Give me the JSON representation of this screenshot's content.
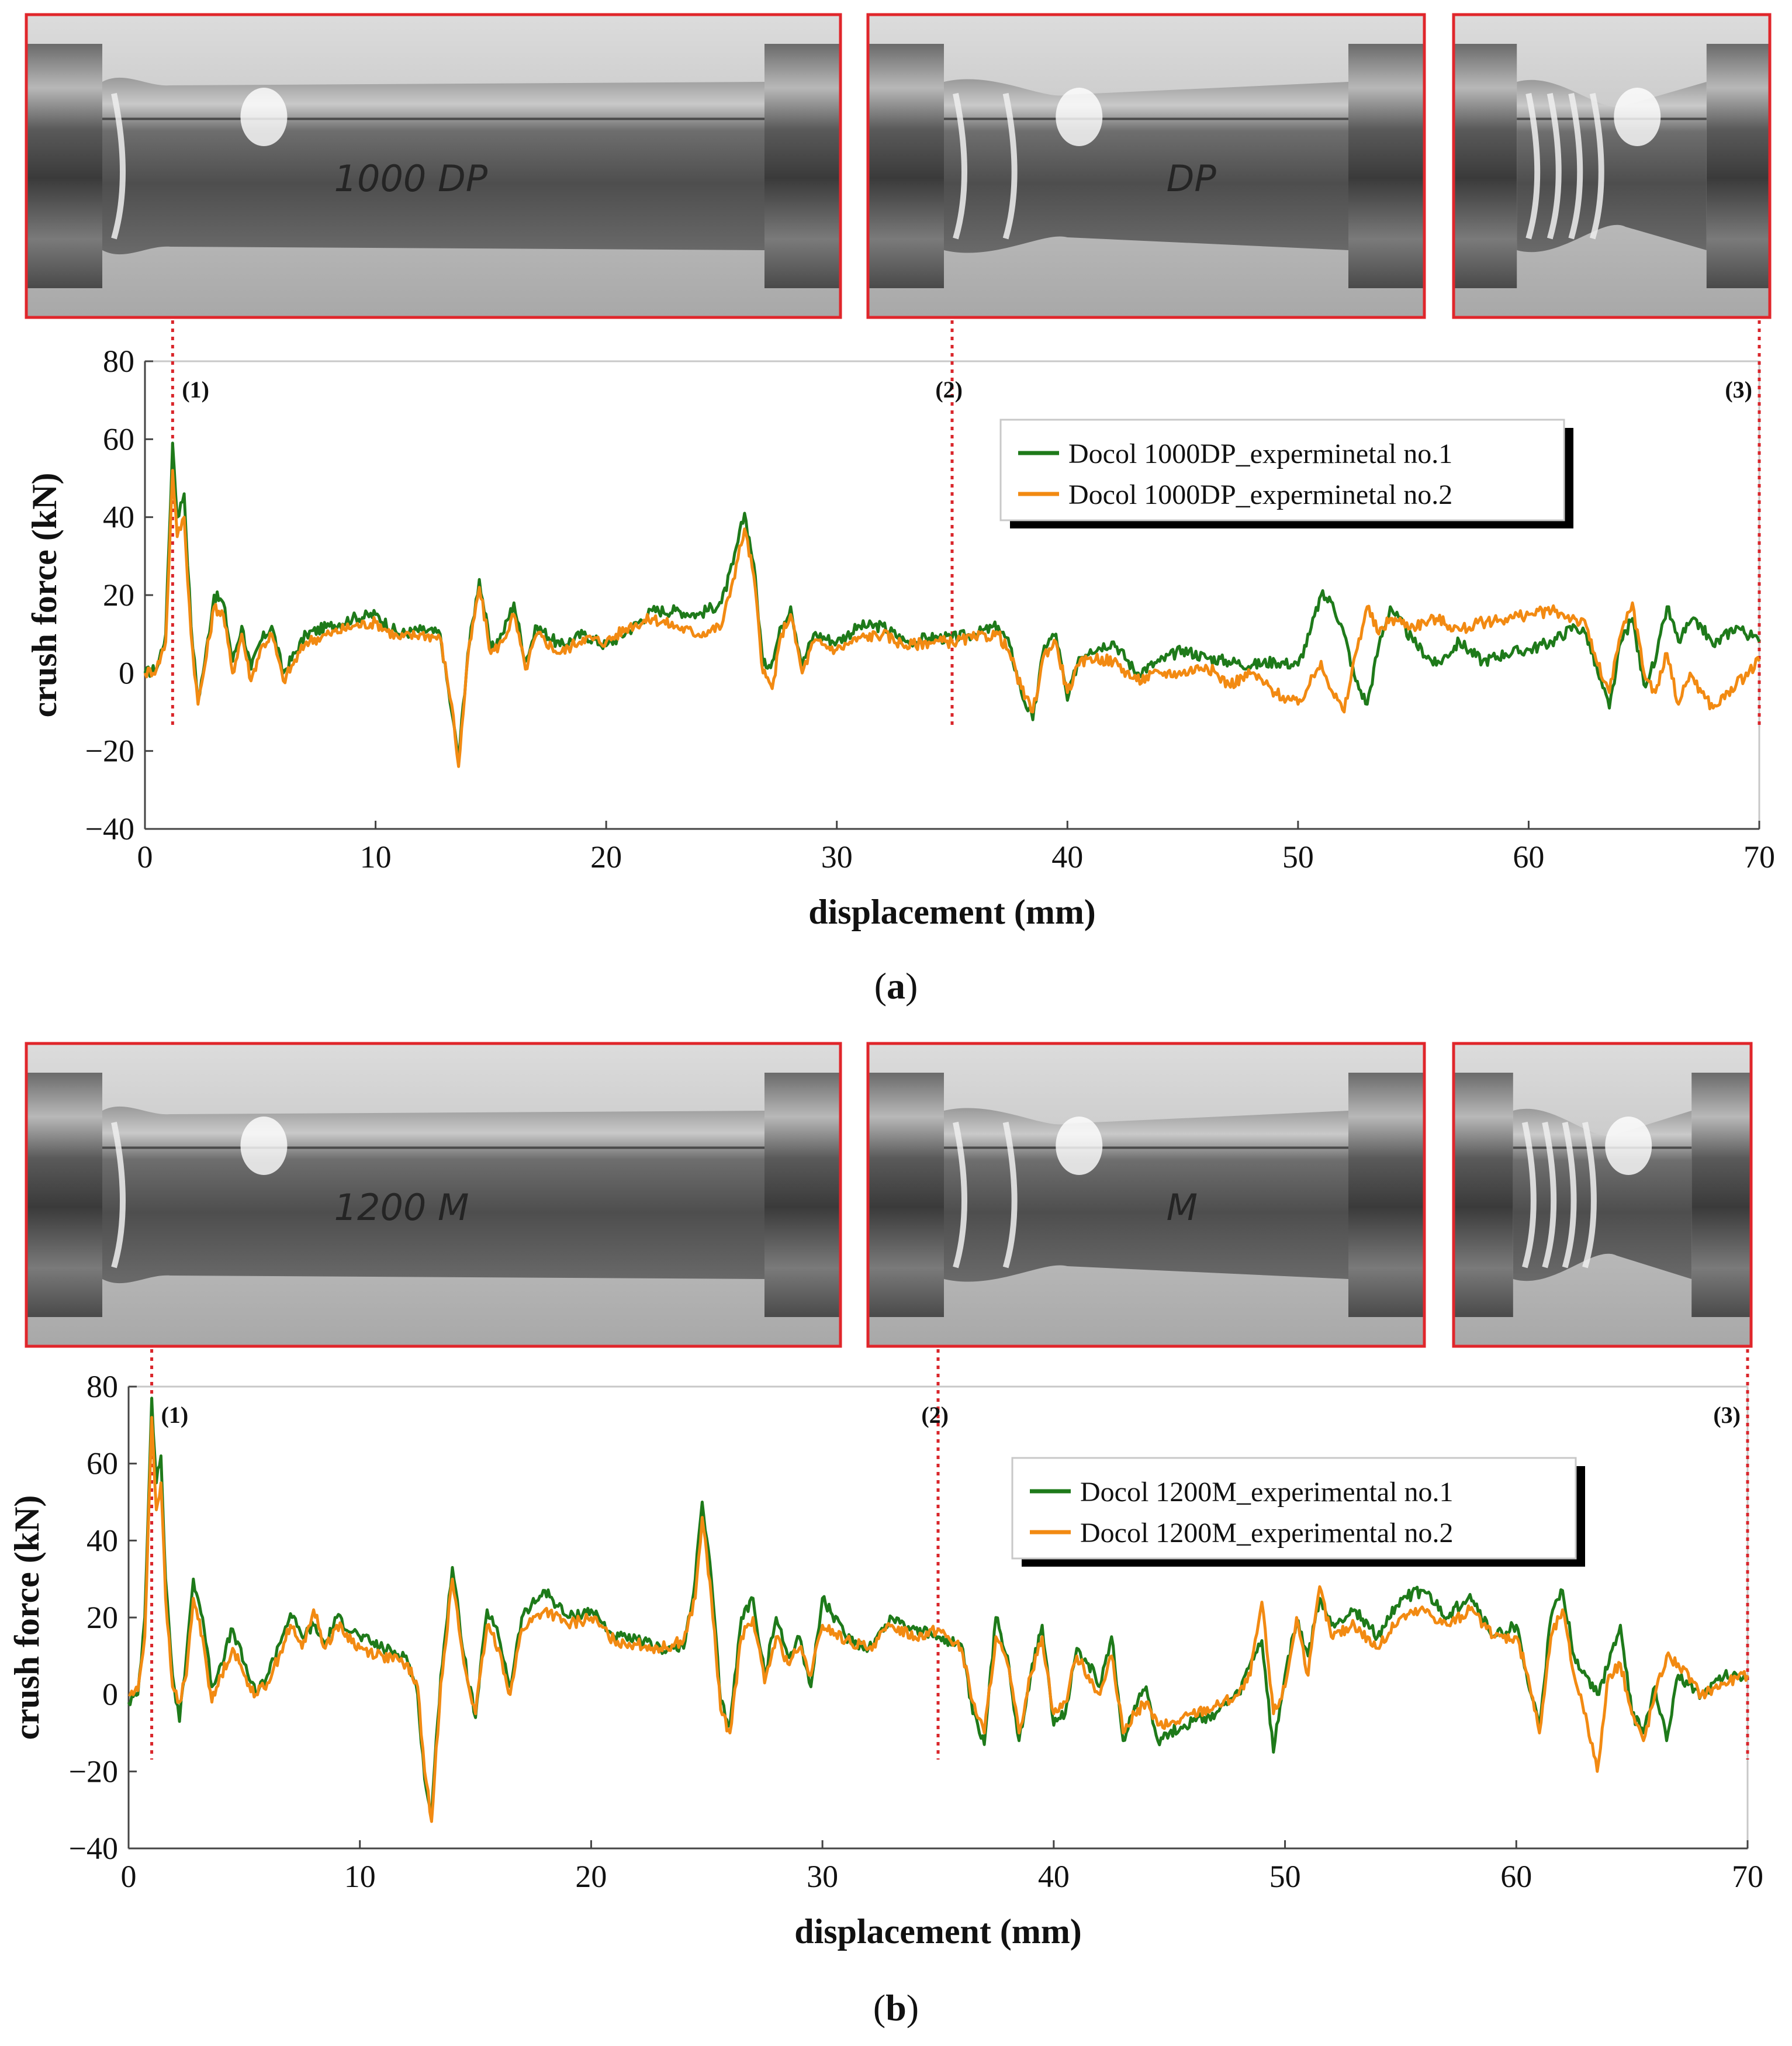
{
  "panels": [
    {
      "id": "a",
      "caption": "a",
      "photos": [
        {
          "stage": "(1)",
          "label": "1000 DP",
          "buckle": 0.15
        },
        {
          "stage": "(2)",
          "label": "DP",
          "buckle": 0.55
        },
        {
          "stage": "(3)",
          "label": "",
          "buckle": 1.0
        }
      ],
      "markers": [
        "(1)",
        "(2)",
        "(3)"
      ],
      "marker_x": [
        1.2,
        35,
        70
      ],
      "legend": [
        "Docol 1000DP_experminetal no.1",
        "Docol 1000DP_experminetal no.2"
      ],
      "colors": {
        "series1": "#1e7a1a",
        "series2": "#f28a12"
      }
    },
    {
      "id": "b",
      "caption": "b",
      "photos": [
        {
          "stage": "(1)",
          "label": "1200 M",
          "buckle": 0.15
        },
        {
          "stage": "(2)",
          "label": "M",
          "buckle": 0.55
        },
        {
          "stage": "(3)",
          "label": "",
          "buckle": 1.0
        }
      ],
      "markers": [
        "(1)",
        "(2)",
        "(3)"
      ],
      "marker_x": [
        1.0,
        35,
        70
      ],
      "legend": [
        "Docol 1200M_experimental no.1",
        "Docol 1200M_experimental no.2"
      ],
      "colors": {
        "series1": "#1e7a1a",
        "series2": "#f28a12"
      }
    }
  ],
  "chart_data": [
    {
      "type": "line",
      "title": "",
      "xlabel": "displacement (mm)",
      "ylabel": "crush force (kN)",
      "xlim": [
        0,
        70
      ],
      "ylim": [
        -40,
        80
      ],
      "xticks": [
        0,
        10,
        20,
        30,
        40,
        50,
        60,
        70
      ],
      "yticks": [
        -40,
        -20,
        0,
        20,
        40,
        60,
        80
      ],
      "grid": false,
      "legend_position": "top-right",
      "series": [
        {
          "name": "Docol 1000DP_experminetal no.1",
          "color": "#1e7a1a",
          "x": [
            0,
            0.5,
            0.9,
            1.2,
            1.4,
            1.7,
            2.0,
            2.3,
            2.6,
            3.0,
            3.4,
            3.8,
            4.2,
            4.6,
            5.0,
            5.5,
            6.0,
            7.0,
            8.0,
            9.0,
            10.0,
            11.0,
            12.0,
            12.8,
            13.3,
            13.6,
            14.0,
            14.5,
            15.0,
            15.5,
            16.0,
            16.5,
            17.0,
            18.0,
            19.0,
            20.0,
            21.0,
            22.0,
            23.0,
            24.0,
            25.0,
            25.5,
            26.0,
            26.4,
            26.8,
            27.2,
            27.6,
            28.0,
            28.5,
            29.0,
            30.0,
            31.0,
            32.0,
            33.0,
            34.0,
            35.0,
            36.0,
            37.0,
            37.5,
            38.0,
            38.5,
            39.0,
            39.5,
            40.0,
            40.5,
            41.0,
            42.0,
            43.0,
            44.0,
            45.0,
            46.0,
            47.0,
            48.0,
            49.0,
            50.0,
            50.5,
            51.0,
            51.5,
            52.0,
            52.5,
            53.0,
            53.5,
            54.0,
            55.0,
            56.0,
            57.0,
            58.0,
            59.0,
            60.0,
            61.0,
            62.0,
            62.5,
            63.0,
            63.5,
            64.0,
            64.5,
            65.0,
            65.5,
            66.0,
            66.5,
            67.0,
            67.5,
            68.0,
            69.0,
            70.0
          ],
          "values": [
            0,
            1,
            10,
            59,
            40,
            46,
            12,
            -7,
            3,
            20,
            18,
            3,
            12,
            1,
            8,
            12,
            0,
            10,
            12,
            14,
            15,
            10,
            11,
            10,
            -10,
            -22,
            5,
            24,
            6,
            10,
            18,
            3,
            12,
            7,
            10,
            7,
            11,
            16,
            16,
            15,
            18,
            28,
            41,
            28,
            2,
            3,
            12,
            17,
            2,
            10,
            8,
            12,
            12,
            8,
            9,
            9,
            10,
            12,
            7,
            -5,
            -12,
            7,
            10,
            -7,
            4,
            6,
            8,
            0,
            3,
            6,
            4,
            3,
            2,
            3,
            2,
            10,
            20,
            18,
            10,
            -2,
            -8,
            7,
            17,
            8,
            2,
            8,
            3,
            5,
            6,
            8,
            12,
            10,
            0,
            -9,
            8,
            14,
            -3,
            3,
            17,
            8,
            13,
            12,
            7,
            12,
            8
          ]
        },
        {
          "name": "Docol 1000DP_experminetal no.2",
          "color": "#f28a12",
          "x": [
            0,
            0.5,
            0.9,
            1.2,
            1.4,
            1.7,
            2.0,
            2.3,
            2.6,
            3.0,
            3.4,
            3.8,
            4.2,
            4.6,
            5.0,
            5.5,
            6.0,
            7.0,
            8.0,
            9.0,
            10.0,
            11.0,
            12.0,
            12.8,
            13.3,
            13.6,
            14.0,
            14.5,
            15.0,
            15.5,
            16.0,
            16.5,
            17.0,
            18.0,
            19.0,
            20.0,
            21.0,
            22.0,
            23.0,
            24.0,
            25.0,
            25.5,
            26.0,
            26.4,
            26.8,
            27.2,
            27.6,
            28.0,
            28.5,
            29.0,
            30.0,
            31.0,
            32.0,
            33.0,
            34.0,
            35.0,
            36.0,
            37.0,
            37.5,
            38.0,
            38.5,
            39.0,
            39.5,
            40.0,
            40.5,
            41.0,
            42.0,
            43.0,
            44.0,
            45.0,
            46.0,
            47.0,
            48.0,
            49.0,
            50.0,
            50.5,
            51.0,
            51.5,
            52.0,
            52.5,
            53.0,
            53.5,
            54.0,
            55.0,
            56.0,
            57.0,
            58.0,
            59.0,
            60.0,
            61.0,
            62.0,
            62.5,
            63.0,
            63.5,
            64.0,
            64.5,
            65.0,
            65.5,
            66.0,
            66.5,
            67.0,
            67.5,
            68.0,
            69.0,
            70.0
          ],
          "values": [
            0,
            1,
            8,
            52,
            35,
            40,
            10,
            -8,
            2,
            17,
            15,
            0,
            10,
            -2,
            6,
            10,
            -2,
            8,
            10,
            12,
            13,
            9,
            10,
            9,
            -8,
            -24,
            4,
            22,
            5,
            8,
            15,
            1,
            10,
            5,
            9,
            8,
            12,
            14,
            12,
            10,
            12,
            24,
            37,
            25,
            0,
            -4,
            10,
            15,
            0,
            8,
            6,
            9,
            10,
            7,
            8,
            8,
            9,
            10,
            5,
            -4,
            -10,
            5,
            8,
            -5,
            2,
            4,
            3,
            -2,
            0,
            0,
            2,
            -3,
            0,
            -5,
            -8,
            -3,
            3,
            -5,
            -10,
            5,
            17,
            10,
            14,
            12,
            14,
            11,
            13,
            14,
            15,
            16,
            14,
            12,
            2,
            -5,
            10,
            18,
            0,
            -5,
            5,
            -8,
            0,
            -5,
            -9,
            -3,
            3
          ]
        }
      ]
    },
    {
      "type": "line",
      "title": "",
      "xlabel": "displacement (mm)",
      "ylabel": "crush force (kN)",
      "xlim": [
        0,
        70
      ],
      "ylim": [
        -40,
        80
      ],
      "xticks": [
        0,
        10,
        20,
        30,
        40,
        50,
        60,
        70
      ],
      "yticks": [
        -40,
        -20,
        0,
        20,
        40,
        60,
        80
      ],
      "grid": false,
      "legend_position": "top-right",
      "series": [
        {
          "name": "Docol 1200M_experimental no.1",
          "color": "#1e7a1a",
          "x": [
            0,
            0.4,
            0.7,
            1.0,
            1.2,
            1.4,
            1.6,
            1.9,
            2.2,
            2.5,
            2.8,
            3.2,
            3.6,
            4.0,
            4.5,
            5.0,
            5.5,
            6.0,
            6.5,
            7.0,
            7.5,
            8.0,
            8.5,
            9.0,
            10.0,
            11.0,
            12.0,
            12.5,
            12.8,
            13.1,
            13.5,
            14.0,
            14.5,
            15.0,
            15.5,
            16.0,
            16.5,
            17.0,
            18.0,
            19.0,
            20.0,
            21.0,
            22.0,
            23.0,
            24.0,
            24.5,
            24.8,
            25.2,
            25.6,
            26.0,
            26.5,
            27.0,
            27.5,
            28.0,
            28.5,
            29.0,
            29.5,
            30.0,
            31.0,
            32.0,
            33.0,
            34.0,
            35.0,
            36.0,
            36.5,
            37.0,
            37.5,
            38.0,
            38.5,
            39.0,
            39.5,
            40.0,
            40.5,
            41.0,
            41.5,
            42.0,
            42.5,
            43.0,
            43.5,
            44.0,
            44.5,
            45.0,
            46.0,
            47.0,
            48.0,
            48.5,
            49.0,
            49.5,
            50.0,
            50.5,
            51.0,
            51.5,
            52.0,
            53.0,
            54.0,
            55.0,
            56.0,
            57.0,
            58.0,
            59.0,
            60.0,
            60.5,
            61.0,
            61.5,
            62.0,
            62.5,
            63.0,
            63.5,
            64.0,
            64.5,
            65.0,
            65.5,
            66.0,
            66.5,
            67.0,
            68.0,
            69.0,
            70.0
          ],
          "values": [
            -2,
            0,
            20,
            77,
            55,
            62,
            30,
            5,
            -7,
            10,
            30,
            20,
            2,
            8,
            17,
            8,
            0,
            5,
            13,
            21,
            15,
            18,
            13,
            20,
            15,
            12,
            10,
            0,
            -22,
            -31,
            5,
            33,
            10,
            -6,
            22,
            15,
            2,
            20,
            27,
            20,
            22,
            15,
            14,
            12,
            12,
            30,
            50,
            30,
            -2,
            -8,
            20,
            25,
            5,
            20,
            10,
            15,
            2,
            25,
            15,
            12,
            20,
            17,
            15,
            13,
            -5,
            -13,
            20,
            10,
            -12,
            5,
            18,
            -8,
            -5,
            12,
            8,
            2,
            15,
            -12,
            -3,
            2,
            -12,
            -10,
            -7,
            -5,
            0,
            8,
            14,
            -15,
            5,
            19,
            10,
            25,
            18,
            22,
            15,
            25,
            27,
            20,
            26,
            15,
            18,
            3,
            -8,
            20,
            27,
            10,
            5,
            0,
            8,
            18,
            -5,
            -10,
            2,
            -12,
            5,
            0,
            5,
            5
          ]
        },
        {
          "name": "Docol 1200M_experimental no.2",
          "color": "#f28a12",
          "x": [
            0,
            0.4,
            0.7,
            1.0,
            1.2,
            1.4,
            1.6,
            1.9,
            2.2,
            2.5,
            2.8,
            3.2,
            3.6,
            4.0,
            4.5,
            5.0,
            5.5,
            6.0,
            6.5,
            7.0,
            7.5,
            8.0,
            8.5,
            9.0,
            10.0,
            11.0,
            12.0,
            12.5,
            12.8,
            13.1,
            13.5,
            14.0,
            14.5,
            15.0,
            15.5,
            16.0,
            16.5,
            17.0,
            18.0,
            19.0,
            20.0,
            21.0,
            22.0,
            23.0,
            24.0,
            24.5,
            24.8,
            25.2,
            25.6,
            26.0,
            26.5,
            27.0,
            27.5,
            28.0,
            28.5,
            29.0,
            29.5,
            30.0,
            31.0,
            32.0,
            33.0,
            34.0,
            35.0,
            36.0,
            36.5,
            37.0,
            37.5,
            38.0,
            38.5,
            39.0,
            39.5,
            40.0,
            40.5,
            41.0,
            41.5,
            42.0,
            42.5,
            43.0,
            43.5,
            44.0,
            44.5,
            45.0,
            46.0,
            47.0,
            48.0,
            48.5,
            49.0,
            49.5,
            50.0,
            50.5,
            51.0,
            51.5,
            52.0,
            53.0,
            54.0,
            55.0,
            56.0,
            57.0,
            58.0,
            59.0,
            60.0,
            60.5,
            61.0,
            61.5,
            62.0,
            62.5,
            63.0,
            63.5,
            64.0,
            64.5,
            65.0,
            65.5,
            66.0,
            66.5,
            67.0,
            68.0,
            69.0,
            70.0
          ],
          "values": [
            0,
            1,
            15,
            72,
            48,
            55,
            25,
            2,
            -2,
            5,
            25,
            15,
            -2,
            5,
            12,
            5,
            0,
            3,
            10,
            18,
            12,
            22,
            12,
            18,
            12,
            10,
            8,
            2,
            -20,
            -33,
            3,
            30,
            8,
            -5,
            18,
            12,
            0,
            17,
            22,
            18,
            20,
            14,
            13,
            12,
            14,
            25,
            46,
            25,
            -4,
            -10,
            15,
            20,
            3,
            15,
            8,
            12,
            5,
            18,
            14,
            12,
            18,
            15,
            17,
            12,
            -2,
            -10,
            15,
            8,
            -10,
            5,
            15,
            -5,
            -2,
            10,
            5,
            0,
            10,
            -10,
            -5,
            -2,
            -8,
            -8,
            -5,
            -3,
            0,
            5,
            24,
            -5,
            2,
            20,
            5,
            28,
            15,
            18,
            12,
            20,
            22,
            18,
            22,
            15,
            15,
            5,
            -10,
            15,
            22,
            5,
            -5,
            -20,
            5,
            8,
            -5,
            -12,
            0,
            10,
            8,
            0,
            3,
            5
          ]
        }
      ]
    }
  ]
}
